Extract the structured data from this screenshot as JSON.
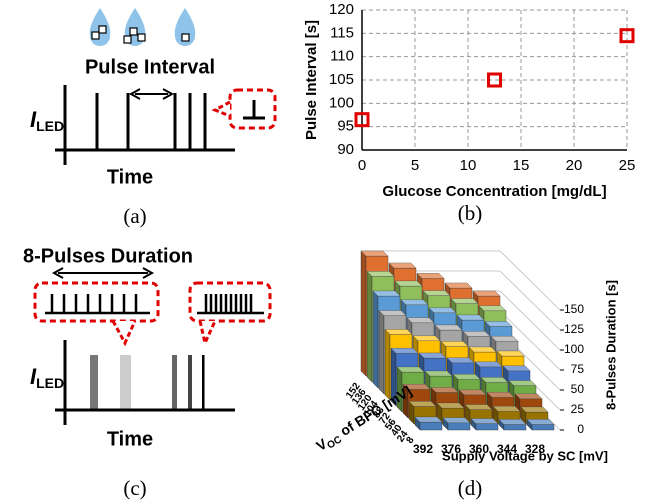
{
  "panel_a": {
    "title": "Pulse Interval",
    "y_label": {
      "main": "I",
      "sub": "LED"
    },
    "x_label": "Time"
  },
  "panel_c": {
    "title": "8-Pulses Duration",
    "y_label": {
      "main": "I",
      "sub": "LED"
    },
    "x_label": "Time"
  },
  "captions": [
    "(a)",
    "(b)",
    "(c)",
    "(d)"
  ],
  "chart_data": [
    {
      "type": "scatter",
      "x_label": "Glucose Concentration [mg/dL]",
      "y_label": "Pulse Interval [s]",
      "x": [
        0,
        12.5,
        25
      ],
      "values": [
        96.5,
        105,
        114.5
      ],
      "color": "#e00000",
      "xlim": [
        0,
        25
      ],
      "xticks": [
        0,
        5,
        10,
        15,
        20,
        25
      ],
      "ylim": [
        90,
        120
      ],
      "yticks": [
        90,
        95,
        100,
        105,
        110,
        115,
        120
      ],
      "grid": true
    },
    {
      "type": "bar3d",
      "x_label": "Supply Voltage by SC [mV]",
      "depth_label": {
        "main": "V",
        "sub": "OC",
        "rest": " of BFC [mV]"
      },
      "y_label": "8-Pulses Duration [s]",
      "categories": [
        "392",
        "376",
        "360",
        "344",
        "328"
      ],
      "series": [
        {
          "name": "152",
          "color": "#e07030",
          "values": [
            150,
            135,
            122,
            110,
            100
          ]
        },
        {
          "name": "136",
          "color": "#8fbf5a",
          "values": [
            132,
            120,
            108,
            98,
            89
          ]
        },
        {
          "name": "120",
          "color": "#5b9bd5",
          "values": [
            115,
            104,
            94,
            85,
            77
          ]
        },
        {
          "name": "104",
          "color": "#a5a5a5",
          "values": [
            98,
            89,
            80,
            72,
            66
          ]
        },
        {
          "name": "88",
          "color": "#ffc000",
          "values": [
            82,
            74,
            67,
            60,
            55
          ]
        },
        {
          "name": "72",
          "color": "#4472c4",
          "values": [
            66,
            60,
            54,
            49,
            44
          ]
        },
        {
          "name": "56",
          "color": "#70ad47",
          "values": [
            50,
            45,
            41,
            37,
            33
          ]
        },
        {
          "name": "40",
          "color": "#9e480e",
          "values": [
            36,
            32,
            29,
            26,
            24
          ]
        },
        {
          "name": "24",
          "color": "#997300",
          "values": [
            22,
            20,
            18,
            16,
            15
          ]
        },
        {
          "name": "8",
          "color": "#4a7ebb",
          "values": [
            10,
            9,
            8,
            7,
            7
          ]
        }
      ],
      "ylim": [
        0,
        150
      ],
      "yticks": [
        0,
        25,
        50,
        75,
        100,
        125,
        150
      ],
      "grid": true
    }
  ]
}
